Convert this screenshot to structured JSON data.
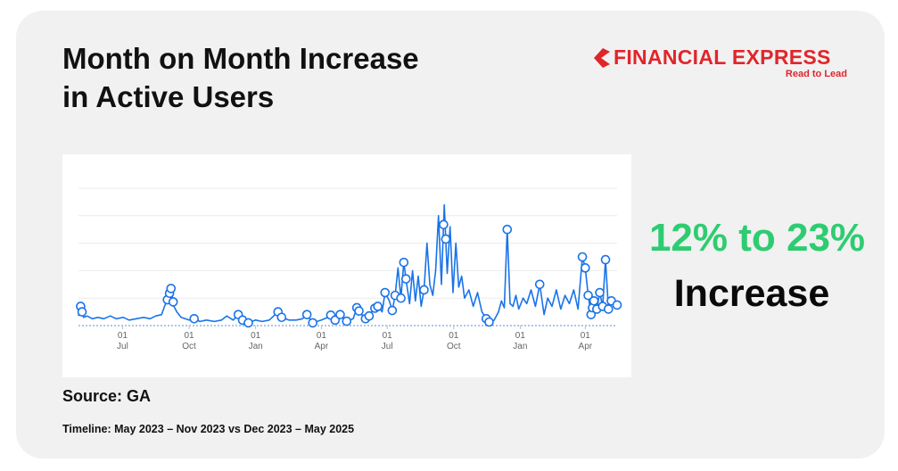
{
  "header": {
    "title_line1": "Month on Month Increase",
    "title_line2": "in Active Users"
  },
  "brand": {
    "name": "FINANCIAL EXPRESS",
    "tagline": "Read to Lead",
    "color": "#e0262b"
  },
  "highlight": {
    "range": "12% to 23%",
    "word": "Increase",
    "range_color": "#2ecc71"
  },
  "footer": {
    "source": "Source: GA",
    "timeline": "Timeline: May 2023 – Nov 2023 vs Dec 2023 – May 2025"
  },
  "chart_data": {
    "type": "line",
    "title": "",
    "xlabel": "",
    "ylabel": "",
    "grid": true,
    "legend": "none",
    "x_range": [
      "2023-05-01",
      "2025-05-15"
    ],
    "ylim": [
      0,
      100
    ],
    "x_ticks": [
      {
        "date": "2023-07-01",
        "day": "01",
        "month": "Jul"
      },
      {
        "date": "2023-10-01",
        "day": "01",
        "month": "Oct"
      },
      {
        "date": "2024-01-01",
        "day": "01",
        "month": "Jan"
      },
      {
        "date": "2024-04-01",
        "day": "01",
        "month": "Apr"
      },
      {
        "date": "2024-07-01",
        "day": "01",
        "month": "Jul"
      },
      {
        "date": "2024-10-01",
        "day": "01",
        "month": "Oct"
      },
      {
        "date": "2025-01-01",
        "day": "01",
        "month": "Jan"
      },
      {
        "date": "2025-04-01",
        "day": "01",
        "month": "Apr"
      }
    ],
    "series": [
      {
        "color": "#1a73e8",
        "points": [
          [
            "2023-05-01",
            7
          ],
          [
            "2023-05-04",
            14
          ],
          [
            "2023-05-08",
            6
          ],
          [
            "2023-05-13",
            7
          ],
          [
            "2023-05-20",
            5
          ],
          [
            "2023-05-28",
            6
          ],
          [
            "2023-06-05",
            5
          ],
          [
            "2023-06-14",
            7
          ],
          [
            "2023-06-22",
            5
          ],
          [
            "2023-07-02",
            6
          ],
          [
            "2023-07-10",
            4
          ],
          [
            "2023-07-20",
            5
          ],
          [
            "2023-07-30",
            6
          ],
          [
            "2023-08-08",
            5
          ],
          [
            "2023-08-16",
            7
          ],
          [
            "2023-08-24",
            8
          ],
          [
            "2023-08-28",
            14
          ],
          [
            "2023-09-02",
            20
          ],
          [
            "2023-09-06",
            27
          ],
          [
            "2023-09-10",
            14
          ],
          [
            "2023-09-14",
            10
          ],
          [
            "2023-09-20",
            6
          ],
          [
            "2023-10-01",
            4
          ],
          [
            "2023-10-08",
            5
          ],
          [
            "2023-10-16",
            3
          ],
          [
            "2023-10-25",
            4
          ],
          [
            "2023-11-05",
            3
          ],
          [
            "2023-11-15",
            4
          ],
          [
            "2023-11-22",
            7
          ],
          [
            "2023-12-01",
            4
          ],
          [
            "2023-12-08",
            8
          ],
          [
            "2023-12-14",
            4
          ],
          [
            "2023-12-22",
            2
          ],
          [
            "2024-01-01",
            4
          ],
          [
            "2024-01-10",
            3
          ],
          [
            "2024-01-20",
            4
          ],
          [
            "2024-02-01",
            10
          ],
          [
            "2024-02-06",
            6
          ],
          [
            "2024-02-16",
            4
          ],
          [
            "2024-02-26",
            4
          ],
          [
            "2024-03-06",
            5
          ],
          [
            "2024-03-12",
            8
          ],
          [
            "2024-03-20",
            2
          ],
          [
            "2024-04-01",
            4
          ],
          [
            "2024-04-10",
            6
          ],
          [
            "2024-04-15",
            8
          ],
          [
            "2024-04-20",
            4
          ],
          [
            "2024-04-27",
            8
          ],
          [
            "2024-05-05",
            3
          ],
          [
            "2024-05-15",
            5
          ],
          [
            "2024-05-20",
            13
          ],
          [
            "2024-05-25",
            9
          ],
          [
            "2024-06-01",
            5
          ],
          [
            "2024-06-06",
            7
          ],
          [
            "2024-06-12",
            12
          ],
          [
            "2024-06-18",
            14
          ],
          [
            "2024-06-24",
            10
          ],
          [
            "2024-06-28",
            24
          ],
          [
            "2024-07-04",
            18
          ],
          [
            "2024-07-08",
            11
          ],
          [
            "2024-07-12",
            22
          ],
          [
            "2024-07-16",
            42
          ],
          [
            "2024-07-20",
            20
          ],
          [
            "2024-07-24",
            46
          ],
          [
            "2024-07-28",
            30
          ],
          [
            "2024-08-01",
            16
          ],
          [
            "2024-08-05",
            40
          ],
          [
            "2024-08-09",
            18
          ],
          [
            "2024-08-13",
            36
          ],
          [
            "2024-08-17",
            14
          ],
          [
            "2024-08-21",
            26
          ],
          [
            "2024-08-25",
            60
          ],
          [
            "2024-08-29",
            30
          ],
          [
            "2024-09-02",
            22
          ],
          [
            "2024-09-06",
            40
          ],
          [
            "2024-09-10",
            80
          ],
          [
            "2024-09-14",
            30
          ],
          [
            "2024-09-18",
            88
          ],
          [
            "2024-09-22",
            38
          ],
          [
            "2024-09-26",
            72
          ],
          [
            "2024-09-30",
            24
          ],
          [
            "2024-10-04",
            60
          ],
          [
            "2024-10-08",
            28
          ],
          [
            "2024-10-12",
            36
          ],
          [
            "2024-10-16",
            20
          ],
          [
            "2024-10-22",
            26
          ],
          [
            "2024-10-28",
            14
          ],
          [
            "2024-11-03",
            24
          ],
          [
            "2024-11-09",
            10
          ],
          [
            "2024-11-15",
            5
          ],
          [
            "2024-11-20",
            2
          ],
          [
            "2024-11-26",
            4
          ],
          [
            "2024-12-02",
            10
          ],
          [
            "2024-12-06",
            18
          ],
          [
            "2024-12-10",
            13
          ],
          [
            "2024-12-14",
            70
          ],
          [
            "2024-12-18",
            16
          ],
          [
            "2024-12-22",
            14
          ],
          [
            "2024-12-26",
            22
          ],
          [
            "2024-12-30",
            12
          ],
          [
            "2025-01-05",
            20
          ],
          [
            "2025-01-10",
            16
          ],
          [
            "2025-01-16",
            26
          ],
          [
            "2025-01-22",
            14
          ],
          [
            "2025-01-28",
            30
          ],
          [
            "2025-02-03",
            8
          ],
          [
            "2025-02-08",
            20
          ],
          [
            "2025-02-14",
            14
          ],
          [
            "2025-02-20",
            26
          ],
          [
            "2025-02-26",
            12
          ],
          [
            "2025-03-04",
            22
          ],
          [
            "2025-03-10",
            16
          ],
          [
            "2025-03-16",
            26
          ],
          [
            "2025-03-22",
            12
          ],
          [
            "2025-03-28",
            50
          ],
          [
            "2025-04-01",
            42
          ],
          [
            "2025-04-05",
            22
          ],
          [
            "2025-04-09",
            8
          ],
          [
            "2025-04-13",
            18
          ],
          [
            "2025-04-17",
            12
          ],
          [
            "2025-04-21",
            24
          ],
          [
            "2025-04-25",
            14
          ],
          [
            "2025-04-29",
            48
          ],
          [
            "2025-05-03",
            12
          ],
          [
            "2025-05-07",
            18
          ],
          [
            "2025-05-11",
            14
          ],
          [
            "2025-05-15",
            15
          ]
        ]
      }
    ],
    "annotation_markers": [
      "2023-05-04",
      "2023-05-06",
      "2023-09-01",
      "2023-09-04",
      "2023-09-06",
      "2023-09-09",
      "2023-10-08",
      "2023-12-08",
      "2023-12-14",
      "2023-12-22",
      "2024-02-01",
      "2024-02-06",
      "2024-03-12",
      "2024-03-20",
      "2024-04-14",
      "2024-04-20",
      "2024-04-27",
      "2024-05-06",
      "2024-05-20",
      "2024-05-23",
      "2024-06-01",
      "2024-06-06",
      "2024-06-14",
      "2024-06-18",
      "2024-06-28",
      "2024-07-08",
      "2024-07-12",
      "2024-07-20",
      "2024-07-24",
      "2024-07-27",
      "2024-08-21",
      "2024-09-17",
      "2024-09-20",
      "2024-11-15",
      "2024-11-19",
      "2024-12-14",
      "2025-01-28",
      "2025-03-28",
      "2025-04-01",
      "2025-04-05",
      "2025-04-09",
      "2025-04-11",
      "2025-04-13",
      "2025-04-17",
      "2025-04-21",
      "2025-04-25",
      "2025-04-29",
      "2025-05-03",
      "2025-05-07",
      "2025-05-15"
    ]
  }
}
